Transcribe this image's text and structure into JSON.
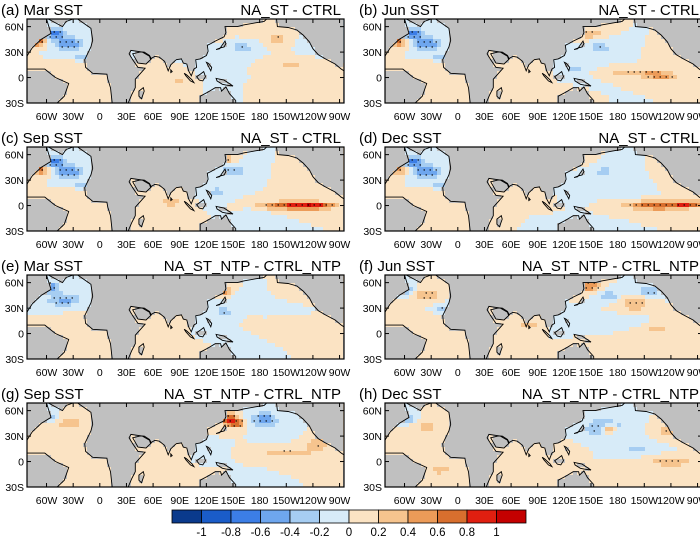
{
  "panels": [
    {
      "id": "a",
      "title_left": "(a) Mar SST",
      "title_right": "NA_ST - CTRL",
      "col": 0,
      "row": 0,
      "pattern": "mar"
    },
    {
      "id": "b",
      "title_left": "(b) Jun SST",
      "title_right": "NA_ST - CTRL",
      "col": 1,
      "row": 0,
      "pattern": "jun"
    },
    {
      "id": "c",
      "title_left": "(c) Sep SST",
      "title_right": "NA_ST - CTRL",
      "col": 0,
      "row": 1,
      "pattern": "sep"
    },
    {
      "id": "d",
      "title_left": "(d) Dec SST",
      "title_right": "NA_ST - CTRL",
      "col": 1,
      "row": 1,
      "pattern": "dec"
    },
    {
      "id": "e",
      "title_left": "(e) Mar SST",
      "title_right": "NA_ST_NTP - CTRL_NTP",
      "col": 0,
      "row": 2,
      "pattern": "ntp_mar"
    },
    {
      "id": "f",
      "title_left": "(f) Jun SST",
      "title_right": "NA_ST_NTP - CTRL_NTP",
      "col": 1,
      "row": 2,
      "pattern": "ntp_jun"
    },
    {
      "id": "g",
      "title_left": "(g) Sep SST",
      "title_right": "NA_ST_NTP - CTRL_NTP",
      "col": 0,
      "row": 3,
      "pattern": "ntp_sep"
    },
    {
      "id": "h",
      "title_left": "(h) Dec SST",
      "title_right": "NA_ST_NTP - CTRL_NTP",
      "col": 1,
      "row": 3,
      "pattern": "ntp_dec"
    }
  ],
  "lat_labels": [
    "60N",
    "30N",
    "0",
    "30S"
  ],
  "lon_labels": [
    "60W",
    "30W",
    "0",
    "30E",
    "60E",
    "90E",
    "120E",
    "150E",
    "180",
    "150W",
    "120W",
    "90W"
  ],
  "colorbar": {
    "labels": [
      "-1",
      "-0.8",
      "-0.6",
      "-0.4",
      "-0.2",
      "0",
      "0.2",
      "0.4",
      "0.6",
      "0.8",
      "1"
    ],
    "colors": [
      "#0a3a8c",
      "#1a5cc8",
      "#3c7ee6",
      "#6ea6ee",
      "#a6cdf2",
      "#d7ebf8",
      "#fbe3c3",
      "#f6c48e",
      "#ec9b58",
      "#d86f2e",
      "#e01f10",
      "#c40000"
    ]
  },
  "colors": {
    "land": "#c0c0c0",
    "frame": "#000000"
  }
}
